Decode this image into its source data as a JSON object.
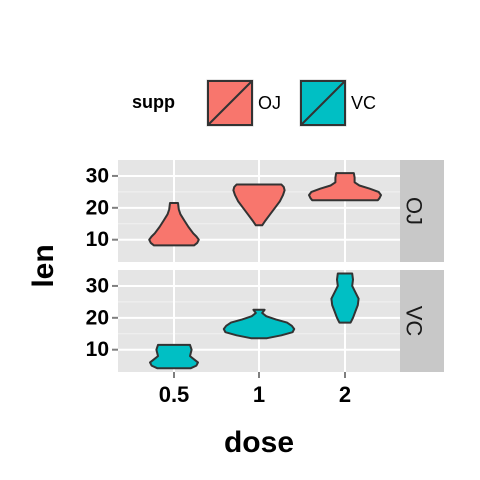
{
  "chart_data": {
    "type": "violin",
    "xlabel": "dose",
    "ylabel": "len",
    "categories": [
      "0.5",
      "1",
      "2"
    ],
    "yticks": [
      10,
      20,
      30
    ],
    "ylim": [
      3,
      35
    ],
    "grid": true,
    "legend": {
      "title": "supp",
      "position": "top",
      "entries": [
        {
          "label": "OJ",
          "color": "#F8766D"
        },
        {
          "label": "VC",
          "color": "#00BFC4"
        }
      ]
    },
    "facets": [
      {
        "label": "OJ",
        "color": "#F8766D",
        "violins": [
          {
            "dose": "0.5",
            "profile": [
              [
                8.2,
                0.25
              ],
              [
                9,
                0.29
              ],
              [
                10,
                0.31
              ],
              [
                11,
                0.28
              ],
              [
                12,
                0.24
              ],
              [
                14,
                0.18
              ],
              [
                16,
                0.13
              ],
              [
                18,
                0.08
              ],
              [
                19.5,
                0.06
              ],
              [
                21.5,
                0.05
              ]
            ]
          },
          {
            "dose": "1",
            "profile": [
              [
                14.5,
                0.04
              ],
              [
                16,
                0.08
              ],
              [
                18,
                0.14
              ],
              [
                20,
                0.2
              ],
              [
                22,
                0.26
              ],
              [
                24,
                0.3
              ],
              [
                25.5,
                0.32
              ],
              [
                26.5,
                0.31
              ],
              [
                27.3,
                0.28
              ]
            ]
          },
          {
            "dose": "2",
            "profile": [
              [
                22.4,
                0.41
              ],
              [
                23,
                0.43
              ],
              [
                24,
                0.45
              ],
              [
                25,
                0.42
              ],
              [
                26,
                0.31
              ],
              [
                27,
                0.18
              ],
              [
                28,
                0.12
              ],
              [
                29.5,
                0.12
              ],
              [
                30.9,
                0.11
              ]
            ]
          }
        ]
      },
      {
        "label": "VC",
        "color": "#00BFC4",
        "violins": [
          {
            "dose": "0.5",
            "profile": [
              [
                4.2,
                0.21
              ],
              [
                5,
                0.28
              ],
              [
                6,
                0.3
              ],
              [
                7,
                0.25
              ],
              [
                8,
                0.2
              ],
              [
                9,
                0.21
              ],
              [
                10,
                0.22
              ],
              [
                11.5,
                0.2
              ]
            ]
          },
          {
            "dose": "1",
            "profile": [
              [
                13.6,
                0.1
              ],
              [
                14.5,
                0.28
              ],
              [
                15.5,
                0.42
              ],
              [
                16.5,
                0.44
              ],
              [
                17.5,
                0.41
              ],
              [
                18.5,
                0.35
              ],
              [
                19.5,
                0.21
              ],
              [
                20.5,
                0.09
              ],
              [
                21.5,
                0.04
              ],
              [
                22.5,
                0.07
              ]
            ]
          },
          {
            "dose": "2",
            "profile": [
              [
                18.5,
                0.07
              ],
              [
                20,
                0.1
              ],
              [
                22,
                0.13
              ],
              [
                24,
                0.16
              ],
              [
                26,
                0.17
              ],
              [
                28,
                0.13
              ],
              [
                30,
                0.09
              ],
              [
                32,
                0.1
              ],
              [
                33.9,
                0.09
              ]
            ]
          }
        ]
      }
    ]
  }
}
